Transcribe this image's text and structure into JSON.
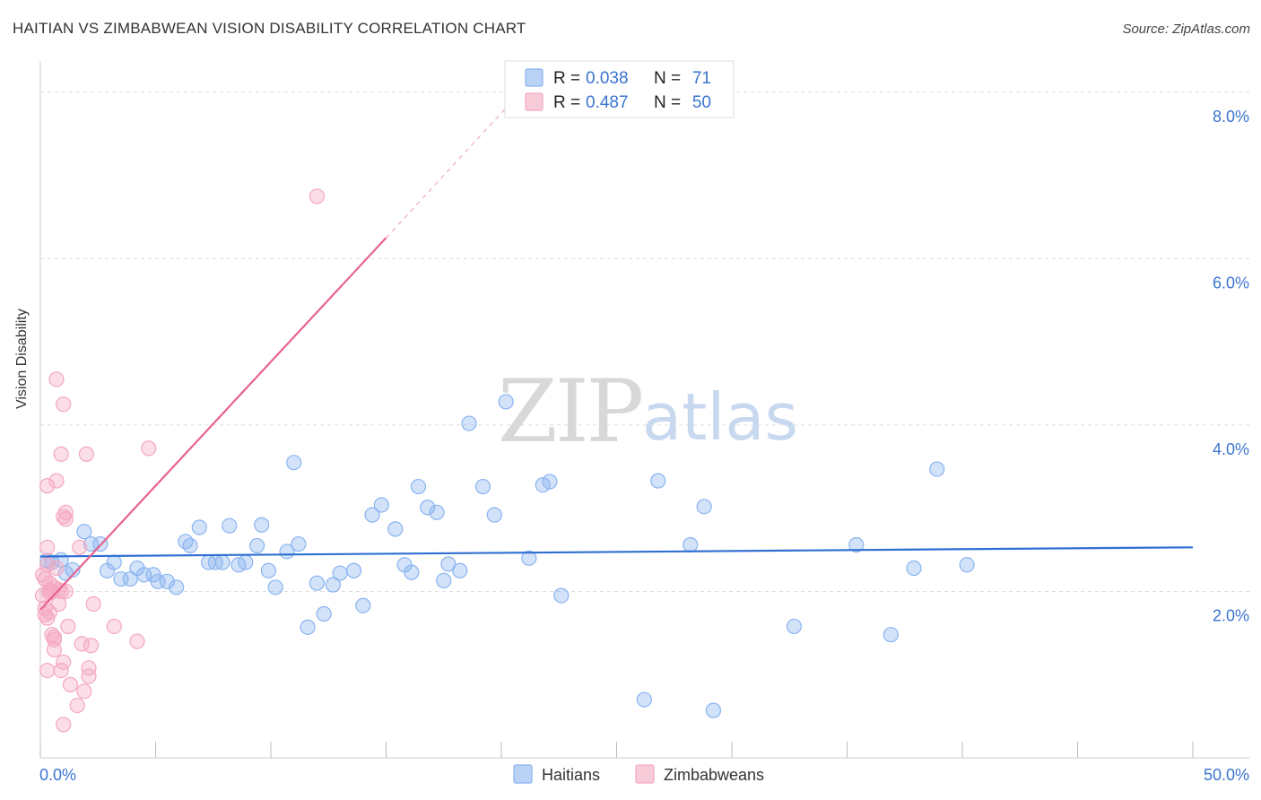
{
  "title": "HAITIAN VS ZIMBABWEAN VISION DISABILITY CORRELATION CHART",
  "source": "Source: ZipAtlas.com",
  "watermark": {
    "zip": "ZIP",
    "atlas": "atlas"
  },
  "chart_data": {
    "type": "scatter",
    "xlabel": "",
    "ylabel": "Vision Disability",
    "xlim": [
      0,
      50
    ],
    "ylim": [
      0,
      8.3
    ],
    "x_tick_labels": [
      {
        "value": 0,
        "label": "0.0%"
      },
      {
        "value": 50,
        "label": "50.0%"
      }
    ],
    "y_tick_labels": [
      {
        "value": 2,
        "label": "2.0%"
      },
      {
        "value": 4,
        "label": "4.0%"
      },
      {
        "value": 6,
        "label": "6.0%"
      },
      {
        "value": 8,
        "label": "8.0%"
      }
    ],
    "grid": true,
    "legend_position": "top-center",
    "series": [
      {
        "name": "Haitians",
        "color": "#8ab4f0",
        "line_color": "#2f6fd1",
        "r_label": "R =",
        "r_value": "0.038",
        "n_label": "N =",
        "n_value": "71",
        "trend": {
          "x": [
            0,
            50
          ],
          "y": [
            2.42,
            2.53
          ]
        },
        "points": [
          [
            0.3,
            2.37
          ],
          [
            0.5,
            2.35
          ],
          [
            0.9,
            2.38
          ],
          [
            1.1,
            2.22
          ],
          [
            1.4,
            2.26
          ],
          [
            1.9,
            2.72
          ],
          [
            2.2,
            2.57
          ],
          [
            2.6,
            2.57
          ],
          [
            2.9,
            2.25
          ],
          [
            3.2,
            2.35
          ],
          [
            3.5,
            2.15
          ],
          [
            3.9,
            2.15
          ],
          [
            4.2,
            2.28
          ],
          [
            4.5,
            2.2
          ],
          [
            4.9,
            2.2
          ],
          [
            5.1,
            2.12
          ],
          [
            5.5,
            2.12
          ],
          [
            5.9,
            2.05
          ],
          [
            6.3,
            2.6
          ],
          [
            6.5,
            2.55
          ],
          [
            6.9,
            2.77
          ],
          [
            7.3,
            2.35
          ],
          [
            7.6,
            2.35
          ],
          [
            7.9,
            2.35
          ],
          [
            8.2,
            2.79
          ],
          [
            8.6,
            2.32
          ],
          [
            8.9,
            2.35
          ],
          [
            9.4,
            2.55
          ],
          [
            9.6,
            2.8
          ],
          [
            9.9,
            2.25
          ],
          [
            10.2,
            2.05
          ],
          [
            10.7,
            2.48
          ],
          [
            11.0,
            3.55
          ],
          [
            11.2,
            2.57
          ],
          [
            11.6,
            1.57
          ],
          [
            12.0,
            2.1
          ],
          [
            12.3,
            1.73
          ],
          [
            12.7,
            2.08
          ],
          [
            13.0,
            2.22
          ],
          [
            13.6,
            2.25
          ],
          [
            14.0,
            1.83
          ],
          [
            14.4,
            2.92
          ],
          [
            14.8,
            3.04
          ],
          [
            15.4,
            2.75
          ],
          [
            15.8,
            2.32
          ],
          [
            16.1,
            2.23
          ],
          [
            16.4,
            3.26
          ],
          [
            16.8,
            3.01
          ],
          [
            17.2,
            2.95
          ],
          [
            17.5,
            2.13
          ],
          [
            17.7,
            2.33
          ],
          [
            18.2,
            2.25
          ],
          [
            18.6,
            4.02
          ],
          [
            19.2,
            3.26
          ],
          [
            19.7,
            2.92
          ],
          [
            20.2,
            4.28
          ],
          [
            21.2,
            2.4
          ],
          [
            21.8,
            3.28
          ],
          [
            22.1,
            3.32
          ],
          [
            22.6,
            1.95
          ],
          [
            26.2,
            0.7
          ],
          [
            26.8,
            3.33
          ],
          [
            28.2,
            2.56
          ],
          [
            28.8,
            3.02
          ],
          [
            29.2,
            0.57
          ],
          [
            32.7,
            1.58
          ],
          [
            35.4,
            2.56
          ],
          [
            36.9,
            1.48
          ],
          [
            37.9,
            2.28
          ],
          [
            38.9,
            3.47
          ],
          [
            40.2,
            2.32
          ]
        ]
      },
      {
        "name": "Zimbabweans",
        "color": "#f4a8c0",
        "line_color": "#e8628f",
        "r_label": "R =",
        "r_value": "0.487",
        "n_label": "N =",
        "n_value": "50",
        "trend": {
          "x": [
            0,
            15
          ],
          "y": [
            1.78,
            6.25
          ]
        },
        "trend_dashed": {
          "x": [
            15,
            20.5
          ],
          "y": [
            6.25,
            7.9
          ]
        },
        "points": [
          [
            0.1,
            2.2
          ],
          [
            0.1,
            1.95
          ],
          [
            0.2,
            2.15
          ],
          [
            0.2,
            1.8
          ],
          [
            0.2,
            1.72
          ],
          [
            0.3,
            2.53
          ],
          [
            0.3,
            2.32
          ],
          [
            0.3,
            1.68
          ],
          [
            0.3,
            1.05
          ],
          [
            0.3,
            3.27
          ],
          [
            0.4,
            2.1
          ],
          [
            0.4,
            1.98
          ],
          [
            0.4,
            1.75
          ],
          [
            0.5,
            2.0
          ],
          [
            0.5,
            1.48
          ],
          [
            0.6,
            2.05
          ],
          [
            0.6,
            1.45
          ],
          [
            0.6,
            1.3
          ],
          [
            0.7,
            4.55
          ],
          [
            0.7,
            3.33
          ],
          [
            0.7,
            2.28
          ],
          [
            0.8,
            1.85
          ],
          [
            0.8,
            2.02
          ],
          [
            0.9,
            3.65
          ],
          [
            0.9,
            2.0
          ],
          [
            0.9,
            1.05
          ],
          [
            1.0,
            4.25
          ],
          [
            1.0,
            2.9
          ],
          [
            1.0,
            1.15
          ],
          [
            1.0,
            0.4
          ],
          [
            1.1,
            2.95
          ],
          [
            1.1,
            2.87
          ],
          [
            1.1,
            2.0
          ],
          [
            1.2,
            1.58
          ],
          [
            1.3,
            0.88
          ],
          [
            1.6,
            0.63
          ],
          [
            1.7,
            2.53
          ],
          [
            1.8,
            1.37
          ],
          [
            1.9,
            0.8
          ],
          [
            2.0,
            3.65
          ],
          [
            2.1,
            1.08
          ],
          [
            2.1,
            0.98
          ],
          [
            2.2,
            1.35
          ],
          [
            2.3,
            1.85
          ],
          [
            3.2,
            1.58
          ],
          [
            4.2,
            1.4
          ],
          [
            4.7,
            3.72
          ],
          [
            12.0,
            6.75
          ],
          [
            0.4,
            2.02
          ],
          [
            0.6,
            1.42
          ]
        ]
      }
    ]
  }
}
